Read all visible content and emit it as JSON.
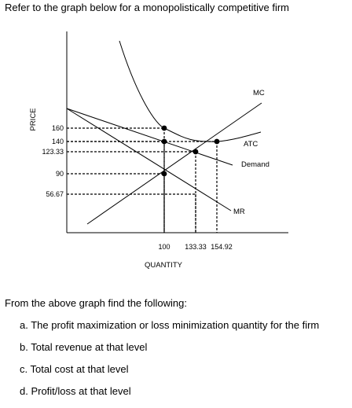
{
  "prompt": "Refer to the graph below for a monopolistically competitive firm",
  "chart_data": {
    "type": "line",
    "ylabel": "PRICE",
    "xlabel": "QUANTITY",
    "y_ticks": [
      {
        "value": 160,
        "label": "160"
      },
      {
        "value": 140,
        "label": "140"
      },
      {
        "value": 123.33,
        "label": "123.33"
      },
      {
        "value": 90,
        "label": "90"
      },
      {
        "value": 56.67,
        "label": "56.67"
      }
    ],
    "x_ticks": [
      {
        "value": 100,
        "label": "100"
      },
      {
        "value": 133.33,
        "label": "133.33"
      },
      {
        "value": 154.92,
        "label": "154.92"
      }
    ],
    "series": [
      {
        "name": "MC",
        "color": "#000000"
      },
      {
        "name": "ATC",
        "color": "#000000"
      },
      {
        "name": "Demand",
        "color": "#000000"
      },
      {
        "name": "MR",
        "color": "#000000"
      }
    ],
    "points": [
      {
        "x": 100,
        "y": 160
      },
      {
        "x": 100,
        "y": 140
      },
      {
        "x": 100,
        "y": 90
      },
      {
        "x": 133.33,
        "y": 123.33
      },
      {
        "x": 154.92,
        "y": 140
      }
    ],
    "guides": [
      {
        "x": 100,
        "y": 160
      },
      {
        "x": 100,
        "y": 140
      },
      {
        "x": 133.33,
        "y": 123.33
      },
      {
        "x": 100,
        "y": 90
      },
      {
        "x": 133.33,
        "y": 56.67
      },
      {
        "x": 154.92,
        "y": 140
      }
    ],
    "grid": false
  },
  "questions": {
    "intro": "From the above graph find the following:",
    "items": [
      "a. The profit maximization or loss minimization quantity for the firm",
      "b. Total revenue at that level",
      "c. Total cost at that level",
      "d. Profit/loss at that level"
    ]
  }
}
